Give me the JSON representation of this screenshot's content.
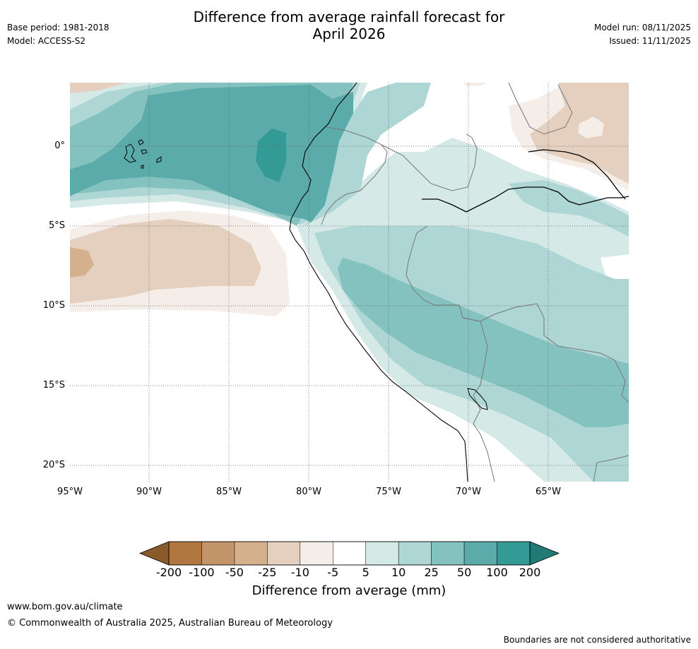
{
  "header": {
    "title_line1": "Difference from average rainfall forecast for",
    "title_line2": "April 2026",
    "base_period": "Base period: 1981-2018",
    "model": "Model: ACCESS-S2",
    "model_run": "Model run: 08/11/2025",
    "issued": "Issued: 11/11/2025"
  },
  "map": {
    "lat_labels": [
      "0°",
      "5°S",
      "10°S",
      "15°S",
      "20°S"
    ],
    "lon_labels": [
      "95°W",
      "90°W",
      "85°W",
      "80°W",
      "75°W",
      "70°W",
      "65°W"
    ]
  },
  "colorbar": {
    "label": "Difference from average (mm)",
    "ticks": [
      "-200",
      "-100",
      "-50",
      "-25",
      "-10",
      "-5",
      "5",
      "10",
      "25",
      "50",
      "100",
      "200"
    ],
    "colors": [
      "#8b5a2b",
      "#b07840",
      "#c4956a",
      "#d4b08c",
      "#e5d0bf",
      "#f5ede8",
      "#ffffff",
      "#d5e9e7",
      "#aed6d4",
      "#84c2bf",
      "#5aabaa",
      "#339a96",
      "#227a77"
    ]
  },
  "footer": {
    "url": "www.bom.gov.au/climate",
    "copyright": "© Commonwealth of Australia 2025, Australian Bureau of Meteorology",
    "disclaimer": "Boundaries are not considered authoritative"
  }
}
